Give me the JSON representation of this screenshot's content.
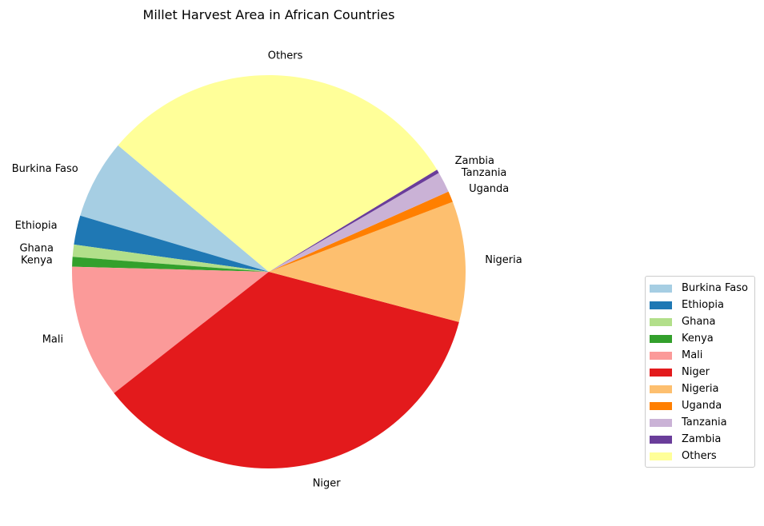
{
  "chart_data": {
    "type": "pie",
    "title": "Millet Harvest Area in African Countries",
    "labels": [
      "Burkina Faso",
      "Ethiopia",
      "Ghana",
      "Kenya",
      "Mali",
      "Niger",
      "Nigeria",
      "Uganda",
      "Tanzania",
      "Zambia",
      "Others"
    ],
    "values": [
      6.5,
      2.4,
      1.0,
      0.8,
      11.0,
      35.3,
      9.9,
      0.9,
      1.7,
      0.3,
      30.2
    ],
    "colors": [
      "#a6cee3",
      "#1f78b4",
      "#b2df8a",
      "#33a02c",
      "#fb9a99",
      "#e31a1c",
      "#fdbf6f",
      "#ff7f00",
      "#cab2d6",
      "#6a3d9a",
      "#ffff99"
    ],
    "start_angle_deg": 140,
    "direction": "counterclockwise",
    "legend": {
      "entries": [
        "Burkina Faso",
        "Ethiopia",
        "Ghana",
        "Kenya",
        "Mali",
        "Niger",
        "Nigeria",
        "Uganda",
        "Tanzania",
        "Zambia",
        "Others"
      ],
      "placement": "right"
    }
  }
}
